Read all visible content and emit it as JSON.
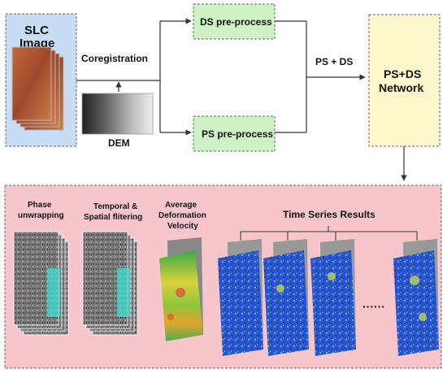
{
  "nodes": {
    "slc": {
      "line1": "SLC",
      "line2": "Image"
    },
    "coregistration": "Coregistration",
    "dem": "DEM",
    "ds_preprocess": "DS pre-process",
    "ps_preprocess": "PS pre-process",
    "ps_ds_edge": "PS + DS",
    "network": {
      "line1": "PS+DS",
      "line2": "Network"
    }
  },
  "results": {
    "phase": {
      "line1": "Phase",
      "line2": "unwrapping"
    },
    "filtering": {
      "line1": "Temporal &",
      "line2": "Spatial flitering"
    },
    "velocity": {
      "line1": "Average",
      "line2": "Deformation",
      "line3": "Velocity"
    },
    "time_series": "Time Series Results",
    "ellipsis": "······"
  },
  "colors": {
    "slc_fill": "#c7dcf5",
    "process_fill": "#cdf3c4",
    "network_fill": "#fcf8cc",
    "results_fill": "#f7c6cb",
    "arrow": "#333333"
  }
}
